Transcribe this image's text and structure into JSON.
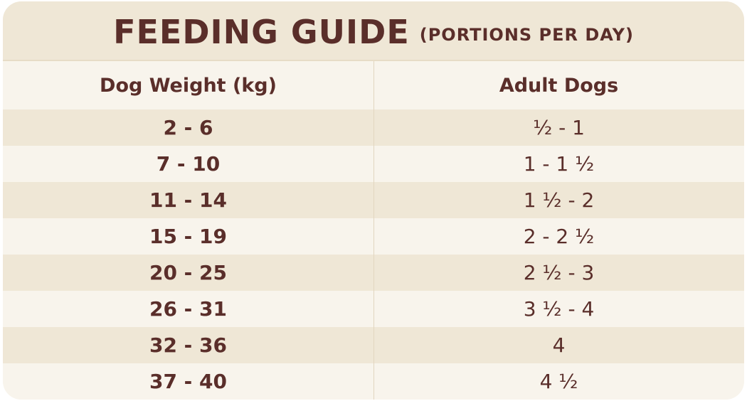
{
  "title": {
    "main": "FEEDING GUIDE",
    "sub": "(PORTIONS PER DAY)"
  },
  "table": {
    "headers": [
      "Dog Weight (kg)",
      "Adult Dogs"
    ],
    "rows": [
      {
        "weight": "2 - 6",
        "portions": "½ - 1"
      },
      {
        "weight": "7 - 10",
        "portions": "1 - 1 ½"
      },
      {
        "weight": "11 - 14",
        "portions": "1 ½ - 2"
      },
      {
        "weight": "15 - 19",
        "portions": "2 - 2 ½"
      },
      {
        "weight": "20 - 25",
        "portions": "2 ½ - 3"
      },
      {
        "weight": "26 - 31",
        "portions": "3 ½ - 4"
      },
      {
        "weight": "32 - 36",
        "portions": "4"
      },
      {
        "weight": "37 - 40",
        "portions": "4 ½"
      }
    ]
  },
  "colors": {
    "text": "#5a2e2a",
    "shaded_row": "#efe7d6",
    "plain_row": "#f8f4ec"
  }
}
